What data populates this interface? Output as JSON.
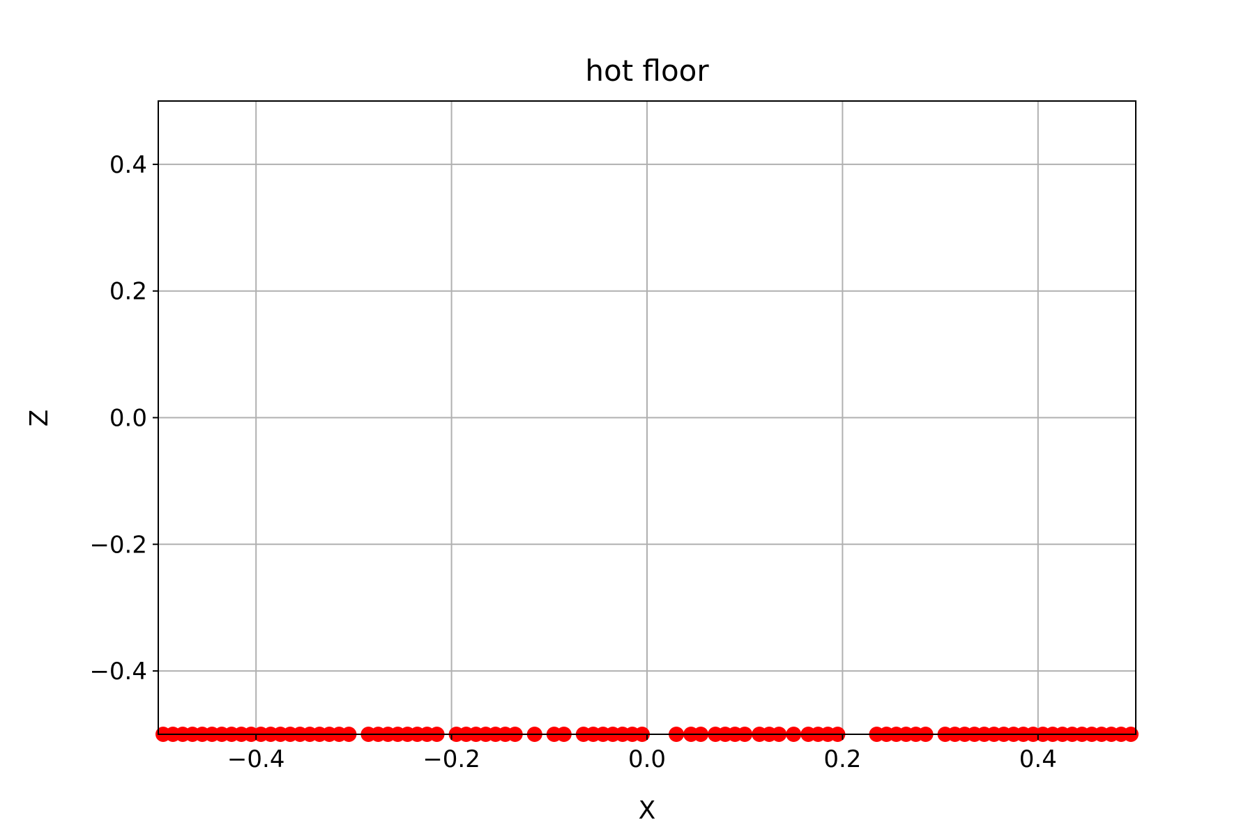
{
  "chart_data": {
    "type": "scatter",
    "title": "hot floor",
    "xlabel": "X",
    "ylabel": "Z",
    "xlim": [
      -0.5,
      0.5
    ],
    "ylim": [
      -0.5,
      0.5
    ],
    "xticks": [
      -0.4,
      -0.2,
      0.0,
      0.2,
      0.4
    ],
    "yticks": [
      -0.4,
      -0.2,
      0.0,
      0.2,
      0.4
    ],
    "xtick_labels": [
      "−0.4",
      "−0.2",
      "0.0",
      "0.2",
      "0.4"
    ],
    "ytick_labels": [
      "−0.4",
      "−0.2",
      "0.0",
      "0.2",
      "0.4"
    ],
    "grid": true,
    "series": [
      {
        "color": "#ff0000",
        "marker": "circle",
        "x": [
          -0.495,
          -0.485,
          -0.475,
          -0.465,
          -0.455,
          -0.445,
          -0.435,
          -0.425,
          -0.415,
          -0.405,
          -0.395,
          -0.385,
          -0.375,
          -0.365,
          -0.355,
          -0.345,
          -0.335,
          -0.325,
          -0.315,
          -0.305,
          -0.285,
          -0.275,
          -0.265,
          -0.255,
          -0.245,
          -0.235,
          -0.225,
          -0.215,
          -0.195,
          -0.185,
          -0.175,
          -0.165,
          -0.155,
          -0.145,
          -0.135,
          -0.115,
          -0.095,
          -0.085,
          -0.065,
          -0.055,
          -0.045,
          -0.035,
          -0.025,
          -0.015,
          -0.005,
          0.03,
          0.045,
          0.055,
          0.07,
          0.08,
          0.09,
          0.1,
          0.115,
          0.125,
          0.135,
          0.15,
          0.165,
          0.175,
          0.185,
          0.195,
          0.235,
          0.245,
          0.255,
          0.265,
          0.275,
          0.285,
          0.305,
          0.315,
          0.325,
          0.335,
          0.345,
          0.355,
          0.365,
          0.375,
          0.385,
          0.395,
          0.405,
          0.415,
          0.425,
          0.435,
          0.445,
          0.455,
          0.465,
          0.475,
          0.485,
          0.495
        ],
        "y": [
          -0.5,
          -0.5,
          -0.5,
          -0.5,
          -0.5,
          -0.5,
          -0.5,
          -0.5,
          -0.5,
          -0.5,
          -0.5,
          -0.5,
          -0.5,
          -0.5,
          -0.5,
          -0.5,
          -0.5,
          -0.5,
          -0.5,
          -0.5,
          -0.5,
          -0.5,
          -0.5,
          -0.5,
          -0.5,
          -0.5,
          -0.5,
          -0.5,
          -0.5,
          -0.5,
          -0.5,
          -0.5,
          -0.5,
          -0.5,
          -0.5,
          -0.5,
          -0.5,
          -0.5,
          -0.5,
          -0.5,
          -0.5,
          -0.5,
          -0.5,
          -0.5,
          -0.5,
          -0.5,
          -0.5,
          -0.5,
          -0.5,
          -0.5,
          -0.5,
          -0.5,
          -0.5,
          -0.5,
          -0.5,
          -0.5,
          -0.5,
          -0.5,
          -0.5,
          -0.5,
          -0.5,
          -0.5,
          -0.5,
          -0.5,
          -0.5,
          -0.5,
          -0.5,
          -0.5,
          -0.5,
          -0.5,
          -0.5,
          -0.5,
          -0.5,
          -0.5,
          -0.5,
          -0.5,
          -0.5,
          -0.5,
          -0.5,
          -0.5,
          -0.5,
          -0.5,
          -0.5,
          -0.5,
          -0.5,
          -0.5
        ]
      }
    ]
  }
}
